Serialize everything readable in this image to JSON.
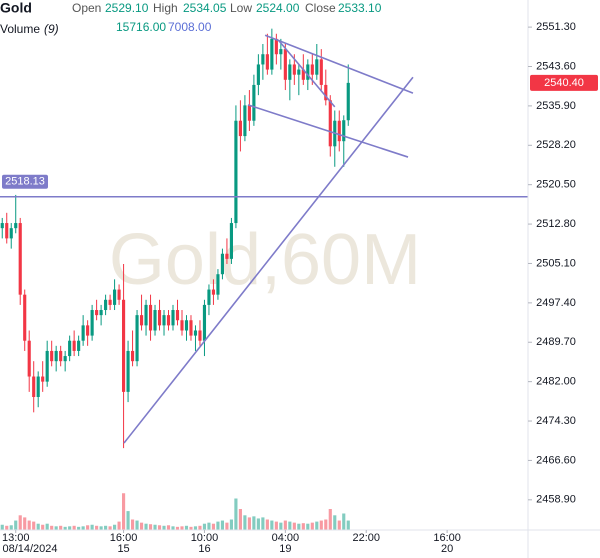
{
  "chart_data": {
    "type": "candlestick",
    "title": "Gold",
    "watermark": "Gold,60M",
    "ohlc_legend": [
      {
        "label": "Open",
        "value": "2529.10"
      },
      {
        "label": "High",
        "value": "2534.05"
      },
      {
        "label": "Low",
        "value": "2524.00"
      },
      {
        "label": "Close",
        "value": "2533.10"
      }
    ],
    "volume_legend": {
      "label": "Volume",
      "period": "(9)",
      "values": [
        "15716.00",
        "7008.00"
      ]
    },
    "up_color": "#089981",
    "down_color": "#f23645",
    "open": [
      2512,
      2513,
      2510,
      2512,
      2513,
      2499,
      2490,
      2483,
      2479,
      2483,
      2482,
      2488,
      2486,
      2488,
      2486,
      2487,
      2490,
      2488,
      2490,
      2493,
      2491,
      2496,
      2495,
      2496,
      2498,
      2497,
      2500,
      2498,
      2480,
      2488,
      2486,
      2495,
      2493,
      2497,
      2492,
      2496,
      2493,
      2495,
      2493,
      2496,
      2494,
      2492,
      2494,
      2491,
      2492,
      2490,
      2497,
      2500,
      2499,
      2503,
      2507,
      2506,
      2513,
      2533,
      2530,
      2536,
      2533,
      2540,
      2544,
      2546,
      2543,
      2549,
      2546,
      2547,
      2541,
      2544,
      2542,
      2543,
      2541,
      2544,
      2542,
      2545,
      2540,
      2537,
      2528,
      2533,
      2529,
      2533.1
    ],
    "high": [
      2514,
      2515,
      2513,
      2518.5,
      2514,
      2500,
      2492,
      2486,
      2484,
      2486,
      2490,
      2490,
      2489,
      2489,
      2488,
      2491,
      2492,
      2491,
      2495,
      2494,
      2497,
      2498,
      2497,
      2499,
      2499,
      2502,
      2501,
      2505,
      2490,
      2492,
      2496,
      2499,
      2498,
      2499,
      2497,
      2498,
      2496,
      2496,
      2497,
      2498,
      2496,
      2495,
      2495,
      2493,
      2494,
      2498,
      2501,
      2502,
      2504,
      2508,
      2510,
      2514,
      2536,
      2537,
      2538,
      2539,
      2542,
      2546,
      2548,
      2550,
      2551,
      2550,
      2549,
      2548,
      2545,
      2546,
      2544,
      2546,
      2545,
      2546,
      2548,
      2547,
      2543,
      2538,
      2535,
      2535,
      2534.05,
      2544
    ],
    "low": [
      2510,
      2509,
      2508,
      2511,
      2497,
      2488,
      2480,
      2476,
      2477,
      2480,
      2481,
      2485,
      2484,
      2485,
      2484,
      2486,
      2487,
      2487,
      2489,
      2489,
      2490,
      2494,
      2493,
      2495,
      2496,
      2496,
      2497,
      2469,
      2478,
      2485,
      2485,
      2492,
      2491,
      2490,
      2491,
      2492,
      2491,
      2492,
      2492,
      2493,
      2491,
      2490,
      2490,
      2488,
      2489,
      2487,
      2495,
      2497,
      2498,
      2502,
      2505,
      2505,
      2512,
      2527,
      2529,
      2531,
      2532,
      2538,
      2541,
      2542,
      2542,
      2544,
      2543,
      2539,
      2537,
      2540,
      2538,
      2540,
      2539,
      2540,
      2541,
      2539,
      2536,
      2526,
      2524,
      2527,
      2524,
      2532
    ],
    "close": [
      2513,
      2510,
      2512,
      2513,
      2499,
      2490,
      2483,
      2479,
      2483,
      2482,
      2488,
      2486,
      2488,
      2486,
      2487,
      2490,
      2488,
      2490,
      2493,
      2491,
      2496,
      2495,
      2496,
      2498,
      2497,
      2500,
      2498,
      2480,
      2488,
      2486,
      2495,
      2493,
      2497,
      2492,
      2496,
      2493,
      2495,
      2493,
      2496,
      2494,
      2492,
      2494,
      2491,
      2492,
      2490,
      2497,
      2500,
      2499,
      2503,
      2507,
      2506,
      2513,
      2533,
      2530,
      2536,
      2533,
      2540,
      2544,
      2546,
      2543,
      2549,
      2546,
      2547,
      2541,
      2544,
      2542,
      2543,
      2541,
      2544,
      2542,
      2545,
      2540,
      2537,
      2528,
      2533,
      2529,
      2533.1,
      2540.4
    ],
    "volume": [
      5000,
      4000,
      4500,
      9000,
      14000,
      12000,
      9000,
      8000,
      6000,
      5000,
      6000,
      4000,
      3500,
      4000,
      3000,
      3500,
      4000,
      3000,
      3500,
      4500,
      5000,
      4000,
      3500,
      4000,
      3500,
      5000,
      8000,
      35000,
      18000,
      10000,
      9000,
      7000,
      6000,
      5500,
      5000,
      4500,
      4000,
      4500,
      3500,
      3000,
      3500,
      4000,
      3000,
      3500,
      4000,
      6000,
      7000,
      6000,
      8000,
      9000,
      7000,
      10000,
      30000,
      20000,
      14000,
      12000,
      13000,
      11000,
      12000,
      10000,
      9000,
      8000,
      7000,
      9000,
      8000,
      7000,
      6000,
      6500,
      6000,
      7000,
      8000,
      9000,
      10000,
      20000,
      14000,
      9000,
      15716,
      9000
    ],
    "volume_lim": [
      0,
      40000
    ],
    "xlim": [
      -0.5,
      117
    ],
    "ylim": [
      2453.0,
      2556.6
    ],
    "yticks": [
      {
        "value": 2551.3,
        "label": "2551.30"
      },
      {
        "value": 2543.6,
        "label": "2543.60"
      },
      {
        "value": 2535.9,
        "label": "2535.90"
      },
      {
        "value": 2528.2,
        "label": "2528.20"
      },
      {
        "value": 2520.5,
        "label": "2520.50"
      },
      {
        "value": 2512.8,
        "label": "2512.80"
      },
      {
        "value": 2505.1,
        "label": "2505.10"
      },
      {
        "value": 2497.4,
        "label": "2497.40"
      },
      {
        "value": 2489.7,
        "label": "2489.70"
      },
      {
        "value": 2482.0,
        "label": "2482.00"
      },
      {
        "value": 2474.3,
        "label": "2474.30"
      },
      {
        "value": 2466.6,
        "label": "2466.60"
      },
      {
        "value": 2458.9,
        "label": "2458.90"
      }
    ],
    "xticks": [
      {
        "value": 3,
        "label": "13:00"
      },
      {
        "value": 27,
        "label": "16:00"
      },
      {
        "value": 45,
        "label": "10:00"
      },
      {
        "value": 63,
        "label": "04:00"
      },
      {
        "value": 81,
        "label": "22:00"
      },
      {
        "value": 99,
        "label": "16:00"
      }
    ],
    "date_ticks": [
      {
        "value": 3,
        "label": "08/14/2024"
      },
      {
        "value": 27,
        "label": "15"
      },
      {
        "value": 45,
        "label": "16"
      },
      {
        "value": 63,
        "label": "19"
      },
      {
        "value": 99,
        "label": "20"
      }
    ],
    "last_price": {
      "value": 2540.4,
      "label": "2540.40"
    },
    "hline": {
      "value": 2518.13,
      "label": "2518.13",
      "color": "#7e7bc9"
    },
    "trendlines": [
      {
        "x": [
          27.1,
          91.4
        ],
        "y": [
          2470.0,
          2541.5
        ]
      },
      {
        "x": [
          58.5,
          91.4
        ],
        "y": [
          2549.7,
          2538.4
        ]
      },
      {
        "x": [
          54.7,
          90.3
        ],
        "y": [
          2536.1,
          2525.9
        ]
      },
      {
        "x": [
          61.4,
          74.0
        ],
        "y": [
          2548.8,
          2535.7
        ]
      }
    ]
  }
}
